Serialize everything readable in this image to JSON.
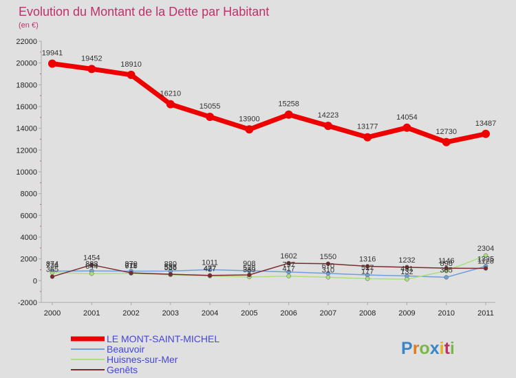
{
  "chart_data": {
    "type": "line",
    "title": "Evolution du Montant de la Dette par Habitant",
    "subtitle": "(en €)",
    "xlabel": "",
    "ylabel": "",
    "x": [
      "2000",
      "2001",
      "2002",
      "2003",
      "2004",
      "2005",
      "2006",
      "2007",
      "2008",
      "2009",
      "2010",
      "2011"
    ],
    "ylim": [
      -2000,
      22000
    ],
    "yticks": [
      -2000,
      0,
      2000,
      4000,
      6000,
      8000,
      10000,
      12000,
      14000,
      16000,
      18000,
      20000,
      22000
    ],
    "grid": false,
    "legend_position": "bottom-left",
    "series": [
      {
        "name": "LE MONT-SAINT-MICHEL",
        "color": "#ee0000",
        "values": [
          19941,
          19452,
          18910,
          16210,
          15055,
          13900,
          15258,
          14223,
          13177,
          14054,
          12730,
          13487
        ]
      },
      {
        "name": "Beauvoir",
        "color": "#6f9fd8",
        "values": [
          874,
          888,
          870,
          880,
          1011,
          908,
          797,
          670,
          517,
          431,
          305,
          1325
        ]
      },
      {
        "name": "Huisnes-sur-Mer",
        "color": "#a8e080",
        "values": [
          734,
          644,
          676,
          536,
          427,
          339,
          417,
          310,
          177,
          132,
          898,
          2304
        ]
      },
      {
        "name": "Genêts",
        "color": "#7a2a2a",
        "values": [
          365,
          1454,
          711,
          586,
          477,
          528,
          1602,
          1550,
          1316,
          1232,
          1146,
          1128
        ]
      }
    ]
  },
  "branding": {
    "logo_text": "Proxiti"
  }
}
